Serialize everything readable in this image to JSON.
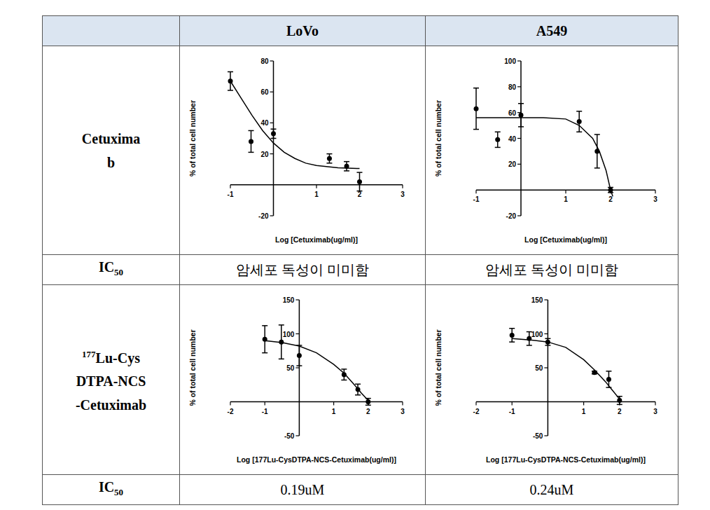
{
  "table": {
    "columns": [
      "LoVo",
      "A549"
    ],
    "rows": [
      {
        "label_lines": [
          "Cetuxima",
          "b"
        ]
      },
      {
        "label": "IC",
        "label_sub": "50",
        "cells": [
          "암세포 독성이 미미함",
          "암세포 독성이 미미함"
        ]
      },
      {
        "label_sup": "177",
        "label_lines": [
          "Lu-Cys",
          "DTPA-NCS",
          "-Cetuximab"
        ]
      },
      {
        "label": "IC",
        "label_sub": "50",
        "cells": [
          "0.19uM",
          "0.24uM"
        ]
      }
    ]
  },
  "chart_data": [
    {
      "type": "scatter",
      "x_label": "Log [Cetuximab(ug/ml)]",
      "y_label": "% of total cell number",
      "xlim": [
        -1,
        3
      ],
      "xticks": [
        -1,
        1,
        2,
        3
      ],
      "ylim": [
        -20,
        80
      ],
      "yticks": [
        -20,
        20,
        40,
        60,
        80
      ],
      "series": [
        {
          "type": "scatter",
          "marker": "circle",
          "color": "#000000",
          "x": [
            -1,
            -0.52,
            0,
            1.3,
            1.7,
            2
          ],
          "values": [
            67,
            28,
            33,
            17,
            12,
            2
          ],
          "errors": [
            6,
            7,
            3,
            3,
            3,
            6
          ]
        },
        {
          "type": "line",
          "color": "#000000",
          "x": [
            -1,
            -0.75,
            -0.5,
            -0.25,
            0,
            0.25,
            0.5,
            0.75,
            1,
            1.5,
            2
          ],
          "values": [
            67,
            56,
            45,
            35,
            27,
            21,
            17,
            14,
            12.5,
            11,
            10.5
          ]
        }
      ]
    },
    {
      "type": "scatter",
      "x_label": "Log [Cetuximab(ug/ml)]",
      "y_label": "% of total cell number",
      "xlim": [
        -1,
        3
      ],
      "xticks": [
        -1,
        1,
        2,
        3
      ],
      "ylim": [
        -20,
        100
      ],
      "yticks": [
        -20,
        20,
        40,
        60,
        80,
        100
      ],
      "series": [
        {
          "type": "scatter",
          "marker": "circle",
          "color": "#000000",
          "x": [
            -1,
            -0.52,
            0,
            1.3,
            1.7,
            2
          ],
          "values": [
            63,
            39,
            58,
            53,
            30,
            0
          ],
          "errors": [
            16,
            6,
            9,
            8,
            13,
            2
          ]
        },
        {
          "type": "line",
          "color": "#000000",
          "x": [
            -1,
            -0.5,
            0,
            0.5,
            1,
            1.3,
            1.6,
            1.75,
            1.9,
            2,
            2.05
          ],
          "values": [
            56,
            56,
            56,
            56,
            55,
            50,
            40,
            30,
            15,
            0,
            -5
          ]
        }
      ]
    },
    {
      "type": "scatter",
      "x_label": "Log [177Lu-CysDTPA-NCS-Cetuximab(ug/ml)]",
      "y_label": "% of total cell number",
      "xlim": [
        -2,
        3
      ],
      "xticks": [
        -2,
        -1,
        1,
        2,
        3
      ],
      "ylim": [
        -50,
        150
      ],
      "yticks": [
        -50,
        50,
        100,
        150
      ],
      "series": [
        {
          "type": "scatter",
          "marker": "circle",
          "color": "#000000",
          "x": [
            -1,
            -0.52,
            0,
            1.3,
            1.7,
            2
          ],
          "values": [
            92,
            88,
            68,
            40,
            18,
            0
          ],
          "errors": [
            20,
            25,
            15,
            8,
            8,
            5
          ]
        },
        {
          "type": "line",
          "color": "#000000",
          "x": [
            -1,
            -0.5,
            0,
            0.5,
            1,
            1.3,
            1.6,
            1.8,
            2
          ],
          "values": [
            90,
            87,
            82,
            72,
            55,
            42,
            25,
            13,
            2
          ]
        }
      ]
    },
    {
      "type": "scatter",
      "x_label": "Log [177Lu-CysDTPA-NCS-Cetuximab(ug/ml)]",
      "y_label": "% of total cell number",
      "xlim": [
        -2,
        3
      ],
      "xticks": [
        -2,
        -1,
        1,
        2,
        3
      ],
      "ylim": [
        -50,
        150
      ],
      "yticks": [
        -50,
        50,
        100,
        150
      ],
      "series": [
        {
          "type": "scatter",
          "marker": "circle",
          "color": "#000000",
          "x": [
            -1,
            -0.52,
            0,
            1.3,
            1.7,
            2
          ],
          "values": [
            98,
            93,
            88,
            43,
            33,
            2
          ],
          "errors": [
            10,
            10,
            5,
            2,
            12,
            6
          ]
        },
        {
          "type": "line",
          "color": "#000000",
          "x": [
            -1,
            -0.5,
            0,
            0.5,
            1,
            1.3,
            1.6,
            1.8,
            2
          ],
          "values": [
            93,
            91,
            88,
            80,
            62,
            47,
            30,
            17,
            4
          ]
        }
      ]
    }
  ]
}
